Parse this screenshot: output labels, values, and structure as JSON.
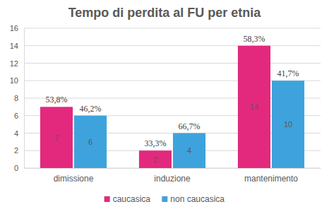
{
  "chart_data": {
    "type": "bar",
    "title": "Tempo di perdita al FU per etnia",
    "categories": [
      "dimissione",
      "induzione",
      "mantenimento"
    ],
    "series": [
      {
        "name": "caucasica",
        "color": "#e3297d",
        "values": [
          7,
          2,
          14
        ],
        "percent_labels": [
          "53,8%",
          "33,3%",
          "58,3%"
        ]
      },
      {
        "name": "non caucasica",
        "color": "#3ea3dc",
        "values": [
          6,
          4,
          10
        ],
        "percent_labels": [
          "46,2%",
          "66,7%",
          "41,7%"
        ]
      }
    ],
    "ylim": [
      0,
      16
    ],
    "yticks": [
      0,
      2,
      4,
      6,
      8,
      10,
      12,
      14,
      16
    ],
    "grid": true,
    "legend": "bottom",
    "data_labels": true
  }
}
